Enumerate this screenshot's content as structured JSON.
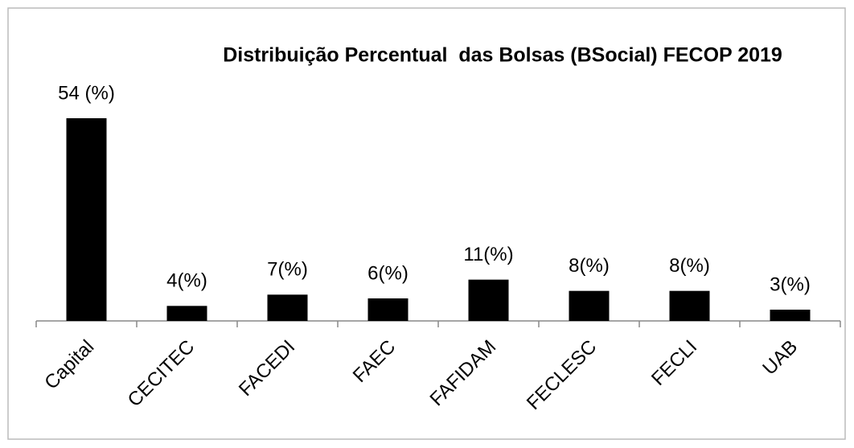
{
  "chart_data": {
    "type": "bar",
    "title": "Distribuição Percentual  das Bolsas (BSocial) FECOP 2019",
    "categories": [
      "Capital",
      "CECITEC",
      "FACEDI",
      "FAEC",
      "FAFIDAM",
      "FECLESC",
      "FECLI",
      "UAB"
    ],
    "values": [
      54,
      4,
      7,
      6,
      11,
      8,
      8,
      3
    ],
    "value_labels": [
      "54 (%)",
      "4(%)",
      "7(%)",
      "6(%)",
      "11(%)",
      "8(%)",
      "8(%)",
      "3(%)"
    ],
    "color": "#000000"
  }
}
